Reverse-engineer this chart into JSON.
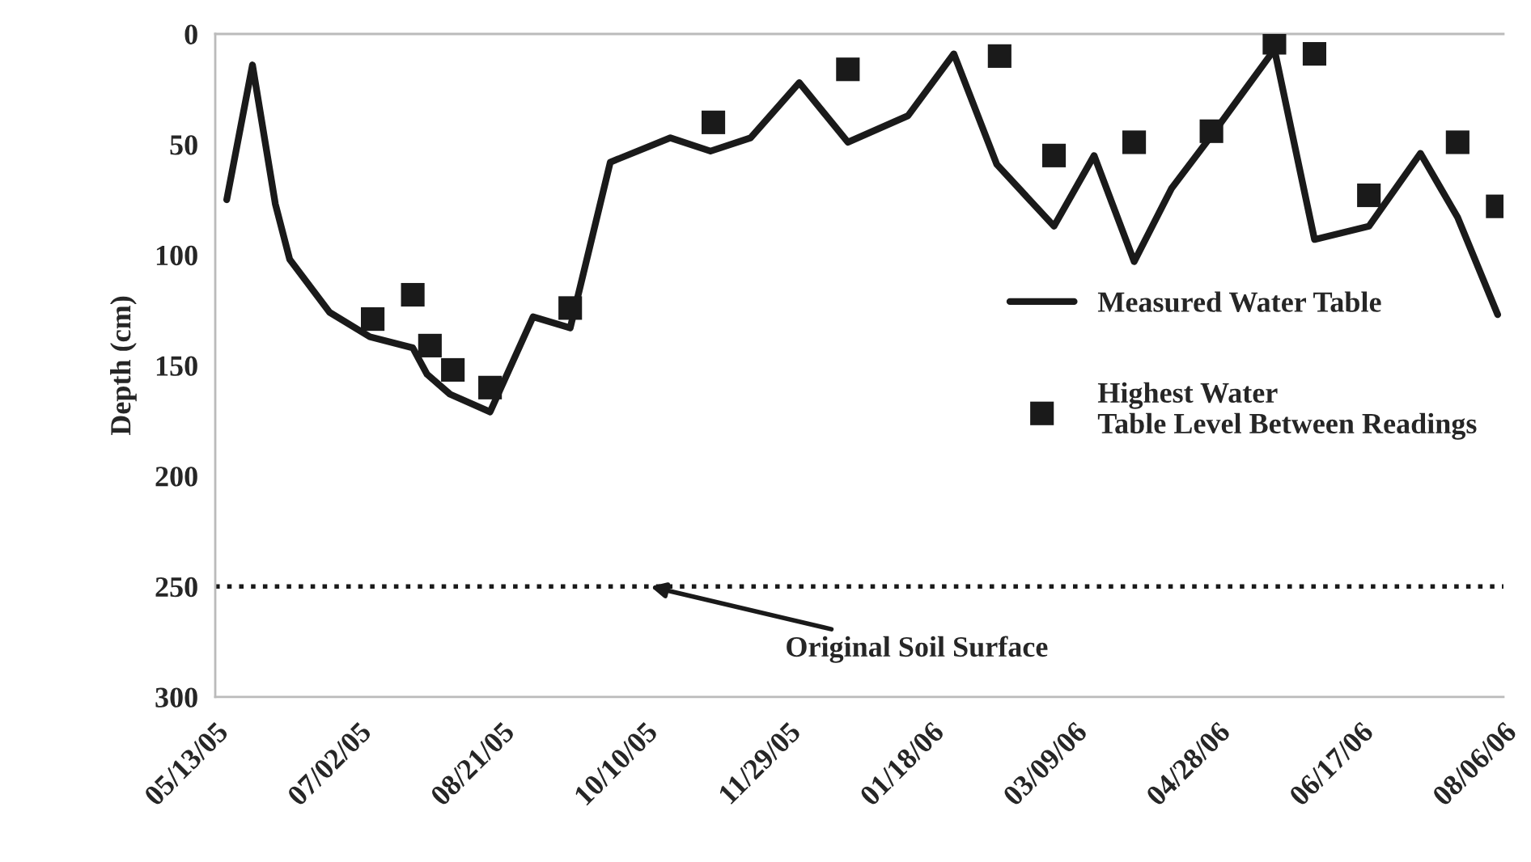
{
  "chart_data": {
    "type": "line",
    "ylabel": "Depth (cm)",
    "series": [
      {
        "name": "Measured Water Table",
        "color": "#1a1a1a",
        "marker": "none",
        "line_style": "solid",
        "x": [
          "2005-05-17",
          "2005-05-26",
          "2005-06-03",
          "2005-06-08",
          "2005-06-22",
          "2005-07-06",
          "2005-07-21",
          "2005-07-26",
          "2005-08-03",
          "2005-08-17",
          "2005-09-01",
          "2005-09-14",
          "2005-09-28",
          "2005-10-19",
          "2005-11-02",
          "2005-11-16",
          "2005-12-03",
          "2005-12-20",
          "2006-01-10",
          "2006-01-26",
          "2006-02-10",
          "2006-03-02",
          "2006-03-16",
          "2006-03-30",
          "2006-04-12",
          "2006-04-26",
          "2006-05-18",
          "2006-06-01",
          "2006-06-20",
          "2006-07-08",
          "2006-07-21",
          "2006-08-04"
        ],
        "values": [
          75,
          14,
          77,
          102,
          126,
          137,
          142,
          154,
          163,
          171,
          128,
          133,
          58,
          47,
          53,
          47,
          22,
          49,
          37,
          9,
          59,
          87,
          55,
          103,
          70,
          46,
          7,
          93,
          87,
          54,
          83,
          127
        ]
      },
      {
        "name": "Highest Water Table Level Between Readings",
        "type": "scatter",
        "color": "#1a1a1a",
        "marker": "square",
        "x": [
          "2005-07-07",
          "2005-07-21",
          "2005-07-27",
          "2005-08-04",
          "2005-08-17",
          "2005-09-14",
          "2005-11-03",
          "2005-12-20",
          "2006-02-11",
          "2006-03-02",
          "2006-03-30",
          "2006-04-26",
          "2006-05-18",
          "2006-06-01",
          "2006-06-20",
          "2006-07-21",
          "2006-08-04"
        ],
        "values": [
          129,
          118,
          141,
          152,
          160,
          124,
          40,
          16,
          10,
          55,
          49,
          44,
          4,
          9,
          73,
          49,
          78
        ]
      }
    ],
    "xlim": [
      "2005-05-13",
      "2006-08-06"
    ],
    "xticks": [
      {
        "value": "2005-05-13",
        "label": "05/13/05"
      },
      {
        "value": "2005-07-02",
        "label": "07/02/05"
      },
      {
        "value": "2005-08-21",
        "label": "08/21/05"
      },
      {
        "value": "2005-10-10",
        "label": "10/10/05"
      },
      {
        "value": "2005-11-29",
        "label": "11/29/05"
      },
      {
        "value": "2006-01-18",
        "label": "01/18/06"
      },
      {
        "value": "2006-03-09",
        "label": "03/09/06"
      },
      {
        "value": "2006-04-28",
        "label": "04/28/06"
      },
      {
        "value": "2006-06-17",
        "label": "06/17/06"
      },
      {
        "value": "2006-08-06",
        "label": "08/06/06"
      }
    ],
    "ylim": [
      300,
      0
    ],
    "yticks": [
      0,
      50,
      100,
      150,
      200,
      250,
      300
    ],
    "ref_lines": [
      {
        "axis": "y",
        "value": 250,
        "color": "#1a1a1a",
        "line_style": "dotted"
      }
    ],
    "annotations": [
      {
        "text": "Original Soil Surface",
        "x": "2005-10-12",
        "y": 250
      }
    ],
    "grid": false,
    "legend": "right"
  }
}
